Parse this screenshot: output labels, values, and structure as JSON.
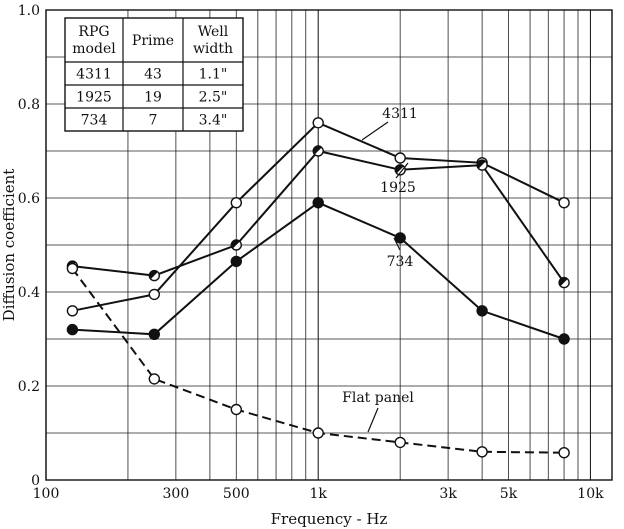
{
  "chart_data": {
    "type": "line",
    "xlabel": "Frequency - Hz",
    "ylabel": "Diffusion coefficient",
    "xscale": "log",
    "xlim": [
      100,
      12000
    ],
    "ylim": [
      0,
      1.0
    ],
    "xticks": [
      {
        "value": 100,
        "label": "100"
      },
      {
        "value": 300,
        "label": "300"
      },
      {
        "value": 500,
        "label": "500"
      },
      {
        "value": 1000,
        "label": "1k"
      },
      {
        "value": 3000,
        "label": "3k"
      },
      {
        "value": 5000,
        "label": "5k"
      },
      {
        "value": 10000,
        "label": "10k"
      }
    ],
    "yticks": [
      {
        "value": 0,
        "label": "0"
      },
      {
        "value": 0.2,
        "label": "0.2"
      },
      {
        "value": 0.4,
        "label": "0.4"
      },
      {
        "value": 0.6,
        "label": "0.6"
      },
      {
        "value": 0.8,
        "label": "0.8"
      },
      {
        "value": 1.0,
        "label": "1.0"
      }
    ],
    "grid": true,
    "x": [
      125,
      250,
      500,
      1000,
      2000,
      4000,
      8000
    ],
    "series": [
      {
        "name": "4311",
        "marker": "open-circle",
        "dash": "solid",
        "values": [
          0.36,
          0.395,
          0.59,
          0.76,
          0.685,
          0.675,
          0.59
        ]
      },
      {
        "name": "1925",
        "marker": "half-filled-circle",
        "dash": "solid",
        "values": [
          0.455,
          0.435,
          0.5,
          0.7,
          0.66,
          0.67,
          0.42
        ]
      },
      {
        "name": "734",
        "marker": "filled-circle",
        "dash": "solid",
        "values": [
          0.32,
          0.31,
          0.465,
          0.59,
          0.515,
          0.36,
          0.3
        ]
      },
      {
        "name": "Flat panel",
        "marker": "open-circle",
        "dash": "dashed",
        "values": [
          0.45,
          0.215,
          0.15,
          0.1,
          0.08,
          0.06,
          0.058
        ]
      }
    ],
    "annotations": [
      {
        "text": "4311",
        "series": "4311"
      },
      {
        "text": "1925",
        "series": "1925"
      },
      {
        "text": "734",
        "series": "734"
      },
      {
        "text": "Flat panel",
        "series": "Flat panel"
      }
    ],
    "inset_table": {
      "header": [
        "RPG\nmodel",
        "Prime",
        "Well\nwidth"
      ],
      "rows": [
        [
          "4311",
          "43",
          "1.1\""
        ],
        [
          "1925",
          "19",
          "2.5\""
        ],
        [
          "734",
          "7",
          "3.4\""
        ]
      ]
    }
  }
}
